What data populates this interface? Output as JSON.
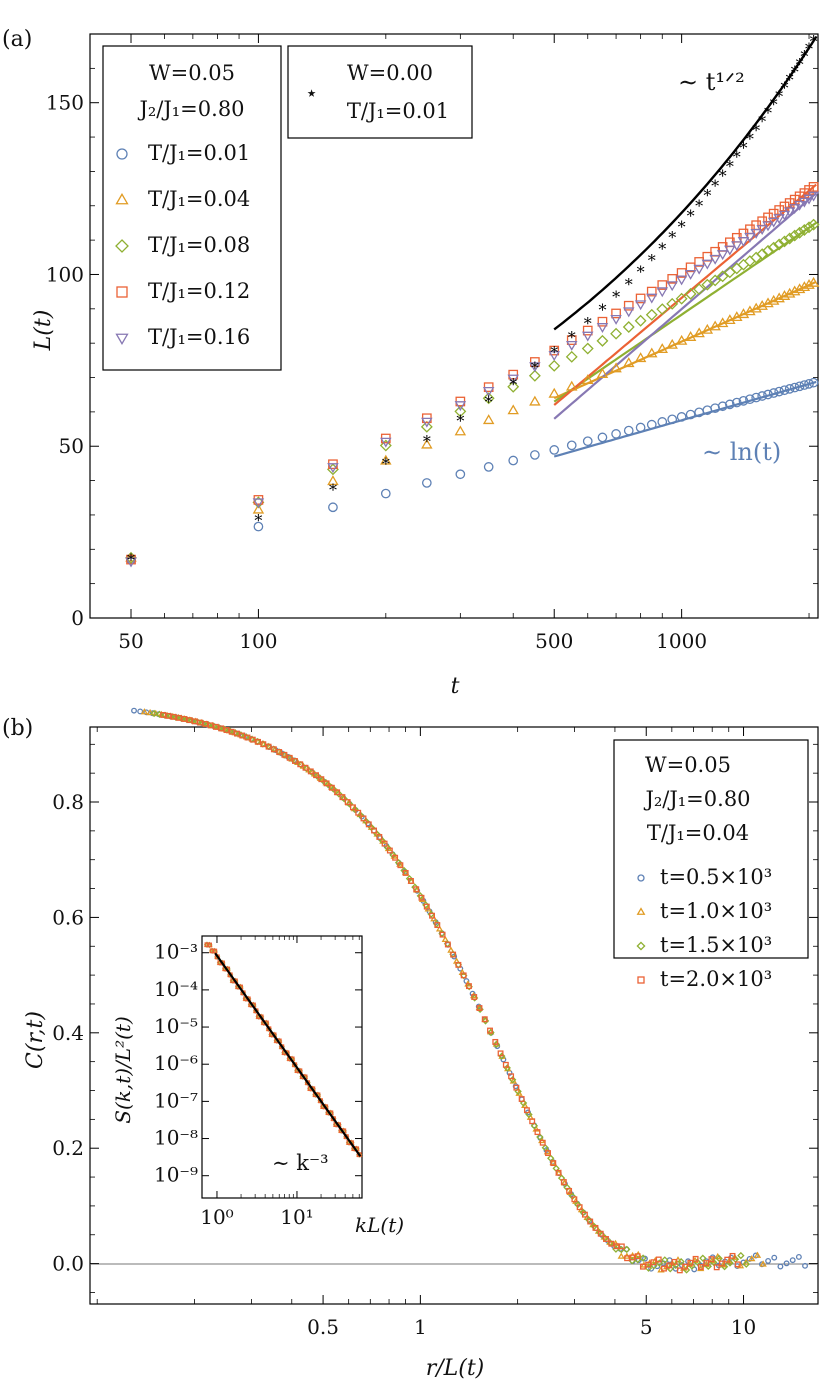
{
  "colors": {
    "blue": "#5E81B5",
    "orange": "#E19C24",
    "green": "#8FB032",
    "red": "#EB6235",
    "purple": "#8778B3",
    "black": "#000000",
    "axis": "#000000"
  },
  "chart_data": [
    {
      "panel": "(a)",
      "type": "scatter",
      "xscale": "log",
      "xlim": [
        40,
        2100
      ],
      "ylim": [
        0,
        170
      ],
      "xlabel": "t",
      "ylabel": "L(t)",
      "xticks": [
        50,
        100,
        500,
        1000
      ],
      "xtick_labels": [
        "50",
        "100",
        "500",
        "1000"
      ],
      "yticks": [
        0,
        50,
        100,
        150
      ],
      "ytick_labels": [
        "0",
        "50",
        "100",
        "150"
      ],
      "legend_main": {
        "header": [
          "W=0.05",
          "J₂/J₁=0.80"
        ],
        "entries": [
          "T/J₁=0.01",
          "T/J₁=0.04",
          "T/J₁=0.08",
          "T/J₁=0.12",
          "T/J₁=0.16"
        ]
      },
      "legend_ref": {
        "marker": "⋆",
        "lines": [
          "W=0.00",
          "T/J₁=0.01"
        ]
      },
      "annotations": {
        "power_law": "∼ t¹ᐟ²",
        "log_law": "∼ ln(t)"
      },
      "series": [
        {
          "name": "T/J1=0.01",
          "marker": "circle",
          "color": "blue",
          "A": 21.2,
          "B": 0.9
        },
        {
          "name": "T/J1=0.04",
          "marker": "triangle",
          "color": "orange",
          "A": 31.5,
          "B": 1.9
        },
        {
          "name": "T/J1=0.08",
          "marker": "diamond",
          "color": "green",
          "A": 31.5,
          "B": 2.45
        },
        {
          "name": "T/J1=0.12",
          "marker": "square",
          "color": "red",
          "A": 32.0,
          "B": 2.68
        },
        {
          "name": "T/J1=0.16",
          "marker": "down-triangle",
          "color": "purple",
          "A": 31.0,
          "B": 2.66
        },
        {
          "name": "W=0.00, T/J1=0.01",
          "marker": "star",
          "color": "black",
          "A": 30.5,
          "B": 3.1
        }
      ],
      "t_values": [
        50,
        100,
        150,
        200,
        250,
        300,
        350,
        400,
        450,
        500,
        550,
        600,
        650,
        700,
        750,
        800,
        850,
        900,
        950,
        1000,
        1050,
        1100,
        1150,
        1200,
        1250,
        1300,
        1350,
        1400,
        1450,
        1500,
        1550,
        1600,
        1650,
        1700,
        1750,
        1800,
        1850,
        1900,
        1950,
        2000,
        2050
      ]
    },
    {
      "panel": "(b)",
      "type": "scatter",
      "xscale": "log",
      "xlim": [
        0.095,
        17
      ],
      "ylim": [
        -0.07,
        0.93
      ],
      "xlabel": "r/L(t)",
      "ylabel": "C(r,t)",
      "xticks": [
        0.5,
        1,
        5,
        10
      ],
      "xtick_labels": [
        "0.5",
        "1",
        "5",
        "10"
      ],
      "yticks": [
        0.0,
        0.2,
        0.4,
        0.6,
        0.8
      ],
      "ytick_labels": [
        "0.0",
        "0.2",
        "0.4",
        "0.6",
        "0.8"
      ],
      "legend": {
        "header": [
          "W=0.05",
          "J₂/J₁=0.80",
          "T/J₁=0.04"
        ],
        "entries": [
          "t=0.5×10³",
          "t=1.0×10³",
          "t=1.5×10³",
          "t=2.0×10³"
        ]
      },
      "series": [
        {
          "name": "t=0.5x10^3",
          "marker": "circle",
          "color": "blue",
          "xmax": 15.5
        },
        {
          "name": "t=1.0x10^3",
          "marker": "triangle",
          "color": "orange",
          "xmax": 11.5
        },
        {
          "name": "t=1.5x10^3",
          "marker": "diamond",
          "color": "green",
          "xmax": 10.2
        },
        {
          "name": "t=2.0x10^3",
          "marker": "square",
          "color": "red",
          "xmax": 9.6
        }
      ],
      "inset": {
        "type": "scatter",
        "xscale": "log",
        "yscale": "log",
        "xlabel": "kL(t)",
        "ylabel": "S(k,t)/L²(t)",
        "xticks": [
          1,
          10
        ],
        "xtick_labels": [
          "10⁰",
          "10¹"
        ],
        "yticks": [
          -3,
          -4,
          -5,
          -6,
          -7,
          -8,
          -9
        ],
        "ytick_labels": [
          "10⁻³",
          "10⁻⁴",
          "10⁻⁵",
          "10⁻⁶",
          "10⁻⁷",
          "10⁻⁸",
          "10⁻⁹"
        ],
        "annotation": "∼ k⁻³",
        "fit_slope": -3
      }
    }
  ]
}
